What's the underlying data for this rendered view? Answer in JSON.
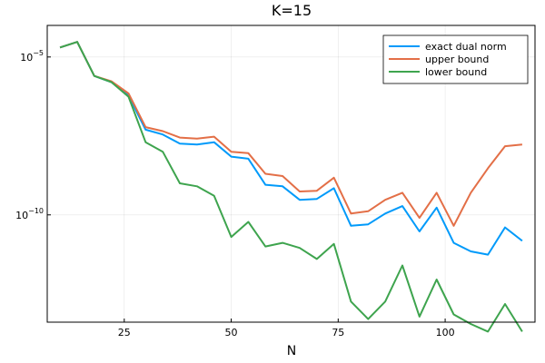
{
  "chart_data": {
    "type": "line",
    "title": "K=15",
    "xlabel": "N",
    "ylabel": "",
    "xlim": [
      7,
      121
    ],
    "ylog": true,
    "ylim": [
      4e-14,
      0.0001
    ],
    "grid": true,
    "legend_position": "top-right",
    "x_ticks": [
      25,
      50,
      75,
      100
    ],
    "y_ticks": [
      {
        "value": 1e-05,
        "base": "10",
        "exp": "−5"
      },
      {
        "value": 1e-10,
        "base": "10",
        "exp": "−10"
      }
    ],
    "x": [
      10,
      14,
      18,
      22,
      26,
      30,
      34,
      38,
      42,
      46,
      50,
      54,
      58,
      62,
      66,
      70,
      74,
      78,
      82,
      86,
      90,
      94,
      98,
      102,
      106,
      110,
      114,
      118
    ],
    "series": [
      {
        "name": "exact dual norm",
        "color": "#009AFA",
        "values": [
          2e-05,
          3e-05,
          2.5e-06,
          1.6e-06,
          6e-07,
          5e-08,
          3.5e-08,
          1.8e-08,
          1.7e-08,
          2e-08,
          7e-09,
          6e-09,
          9e-10,
          8e-10,
          3e-10,
          3.2e-10,
          7e-10,
          4.5e-11,
          5e-11,
          1.1e-10,
          1.9e-10,
          3e-11,
          1.7e-10,
          1.3e-11,
          7e-12,
          5.5e-12,
          4e-11,
          1.5e-11
        ]
      },
      {
        "name": "upper bound",
        "color": "#E36F47",
        "values": [
          2e-05,
          3e-05,
          2.5e-06,
          1.7e-06,
          7e-07,
          6e-08,
          4.5e-08,
          2.8e-08,
          2.6e-08,
          3e-08,
          1e-08,
          9e-09,
          2e-09,
          1.7e-09,
          5.5e-10,
          5.8e-10,
          1.5e-09,
          1.1e-10,
          1.3e-10,
          3e-10,
          5e-10,
          8e-11,
          5e-10,
          4.5e-11,
          5e-10,
          3e-09,
          1.5e-08,
          1.7e-08
        ]
      },
      {
        "name": "lower bound",
        "color": "#3EA44E",
        "values": [
          2e-05,
          3e-05,
          2.5e-06,
          1.6e-06,
          5.5e-07,
          2e-08,
          1e-08,
          1e-09,
          8e-10,
          4e-10,
          2e-11,
          6e-11,
          1e-11,
          1.3e-11,
          9e-12,
          4e-12,
          1.2e-11,
          1.8e-13,
          5e-14,
          1.8e-13,
          2.5e-12,
          6e-14,
          9e-13,
          7e-14,
          3.5e-14,
          4e-15,
          1.5e-13,
          3e-15
        ]
      }
    ]
  }
}
